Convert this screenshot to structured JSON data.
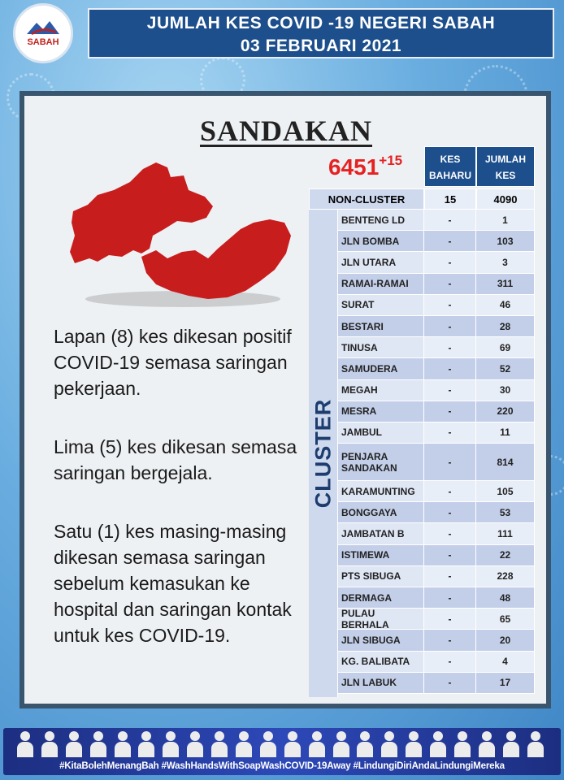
{
  "header": {
    "logo_text": "SABAH",
    "title_line1": "JUMLAH KES COVID -19 NEGERI SABAH",
    "title_line2": "03 FEBRUARI 2021"
  },
  "district": "SANDAKAN",
  "summary": {
    "total": "6451",
    "new": "+15"
  },
  "descriptions": [
    "Lapan (8) kes dikesan positif COVID-19 semasa saringan pekerjaan.",
    "Lima (5) kes dikesan semasa saringan bergejala.",
    "Satu (1) kes masing-masing dikesan semasa saringan sebelum kemasukan ke hospital dan saringan kontak untuk kes COVID-19."
  ],
  "table": {
    "header_baharu": "KES BAHARU",
    "header_jumlah": "JUMLAH KES",
    "non_cluster": {
      "name": "NON-CLUSTER",
      "baharu": "15",
      "jumlah": "4090"
    },
    "cluster_label": "CLUSTER",
    "clusters": [
      {
        "name": "BENTENG LD",
        "baharu": "-",
        "jumlah": "1"
      },
      {
        "name": "JLN BOMBA",
        "baharu": "-",
        "jumlah": "103"
      },
      {
        "name": "JLN UTARA",
        "baharu": "-",
        "jumlah": "3"
      },
      {
        "name": "RAMAI-RAMAI",
        "baharu": "-",
        "jumlah": "311"
      },
      {
        "name": "SURAT",
        "baharu": "-",
        "jumlah": "46"
      },
      {
        "name": "BESTARI",
        "baharu": "-",
        "jumlah": "28"
      },
      {
        "name": "TINUSA",
        "baharu": "-",
        "jumlah": "69"
      },
      {
        "name": "SAMUDERA",
        "baharu": "-",
        "jumlah": "52"
      },
      {
        "name": "MEGAH",
        "baharu": "-",
        "jumlah": "30"
      },
      {
        "name": "MESRA",
        "baharu": "-",
        "jumlah": "220"
      },
      {
        "name": "JAMBUL",
        "baharu": "-",
        "jumlah": "11"
      },
      {
        "name": "PENJARA SANDAKAN",
        "baharu": "-",
        "jumlah": "814"
      },
      {
        "name": "KARAMUNTING",
        "baharu": "-",
        "jumlah": "105"
      },
      {
        "name": "BONGGAYA",
        "baharu": "-",
        "jumlah": "53"
      },
      {
        "name": "JAMBATAN B",
        "baharu": "-",
        "jumlah": "111"
      },
      {
        "name": "ISTIMEWA",
        "baharu": "-",
        "jumlah": "22"
      },
      {
        "name": "PTS SIBUGA",
        "baharu": "-",
        "jumlah": "228"
      },
      {
        "name": "DERMAGA",
        "baharu": "-",
        "jumlah": "48"
      },
      {
        "name": "PULAU BERHALA",
        "baharu": "-",
        "jumlah": "65"
      },
      {
        "name": "JLN SIBUGA",
        "baharu": "-",
        "jumlah": "20"
      },
      {
        "name": "KG. BALIBATA",
        "baharu": "-",
        "jumlah": "4"
      },
      {
        "name": "JLN LABUK",
        "baharu": "-",
        "jumlah": "17"
      }
    ]
  },
  "footer": {
    "hashtags": "#KitaBolehMenangBah #WashHandsWithSoapWashCOVID-19Away #LindungiDiriAndaLindungiMereka"
  },
  "colors": {
    "map_fill": "#c81d1d",
    "header_bg": "#1d4f8c",
    "total_red": "#e52222"
  }
}
